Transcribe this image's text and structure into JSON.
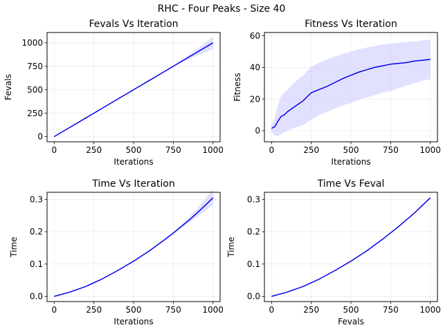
{
  "figure": {
    "title": "RHC - Four Peaks - Size 40",
    "line_color": "#0000ee",
    "band_color": "#c8c8ff",
    "grid": true
  },
  "chart_data": [
    {
      "type": "line",
      "title": "Fevals Vs Iteration",
      "xlabel": "Iterations",
      "ylabel": "Fevals",
      "xlim": [
        -45,
        1045
      ],
      "ylim": [
        -55,
        1110
      ],
      "xticks": [
        0,
        250,
        500,
        750,
        1000
      ],
      "yticks": [
        0,
        250,
        500,
        750,
        1000
      ],
      "xticklabels": [
        "0",
        "250",
        "500",
        "750",
        "1000"
      ],
      "yticklabels": [
        "0",
        "250",
        "500",
        "750",
        "1000"
      ],
      "series": [
        {
          "x": [
            0,
            100,
            200,
            300,
            400,
            500,
            600,
            700,
            750,
            800,
            850,
            900,
            950,
            1000
          ],
          "y": [
            0,
            100,
            200,
            300,
            400,
            500,
            600,
            700,
            750,
            800,
            850,
            900,
            950,
            1000
          ],
          "lower": [
            0,
            100,
            200,
            300,
            400,
            500,
            600,
            700,
            748,
            787,
            826,
            862,
            898,
            935
          ],
          "upper": [
            0,
            100,
            200,
            300,
            400,
            500,
            600,
            700,
            752,
            812,
            874,
            936,
            1000,
            1065
          ]
        }
      ]
    },
    {
      "type": "line",
      "title": "Fitness Vs Iteration",
      "xlabel": "Iterations",
      "ylabel": "Fitness",
      "xlim": [
        -45,
        1045
      ],
      "ylim": [
        -7,
        62
      ],
      "xticks": [
        0,
        250,
        500,
        750,
        1000
      ],
      "yticks": [
        0,
        20,
        40,
        60
      ],
      "xticklabels": [
        "0",
        "250",
        "500",
        "750",
        "1000"
      ],
      "yticklabels": [
        "0",
        "20",
        "40",
        "60"
      ],
      "series": [
        {
          "x": [
            0,
            20,
            40,
            60,
            80,
            100,
            150,
            200,
            250,
            300,
            350,
            400,
            450,
            500,
            550,
            600,
            650,
            700,
            750,
            800,
            850,
            900,
            950,
            1000
          ],
          "y": [
            1.5,
            2.5,
            6,
            9,
            10,
            12,
            15.5,
            19,
            24,
            26,
            28,
            30.5,
            33,
            35,
            37,
            38.5,
            40,
            41,
            42,
            42.5,
            43,
            44,
            44.5,
            45
          ],
          "lower": [
            -1,
            -3,
            -3.5,
            -2,
            -1,
            0,
            2,
            3.5,
            7,
            10,
            12,
            14,
            16,
            17.5,
            19.5,
            21,
            22.5,
            24,
            25,
            27,
            28.5,
            30,
            31.5,
            32.5
          ],
          "upper": [
            4,
            8,
            16,
            22,
            24,
            26,
            31,
            35,
            40.5,
            43,
            45,
            47,
            48.5,
            50,
            51.5,
            52.5,
            53.5,
            54.5,
            55,
            55.5,
            56,
            56.5,
            57,
            57.5
          ]
        }
      ]
    },
    {
      "type": "line",
      "title": "Time Vs Iteration",
      "xlabel": "Iterations",
      "ylabel": "Time",
      "xlim": [
        -45,
        1045
      ],
      "ylim": [
        -0.016,
        0.322
      ],
      "xticks": [
        0,
        250,
        500,
        750,
        1000
      ],
      "yticks": [
        0.0,
        0.1,
        0.2,
        0.3
      ],
      "xticklabels": [
        "0",
        "250",
        "500",
        "750",
        "1000"
      ],
      "yticklabels": [
        "0.0",
        "0.1",
        "0.2",
        "0.3"
      ],
      "series": [
        {
          "x": [
            0,
            100,
            200,
            300,
            400,
            500,
            600,
            700,
            750,
            800,
            850,
            900,
            950,
            1000
          ],
          "y": [
            0,
            0.0135,
            0.031,
            0.0535,
            0.08,
            0.109,
            0.141,
            0.177,
            0.196,
            0.216,
            0.236,
            0.258,
            0.281,
            0.305
          ],
          "lower": [
            0,
            0.0135,
            0.031,
            0.0535,
            0.08,
            0.109,
            0.141,
            0.177,
            0.194,
            0.211,
            0.228,
            0.246,
            0.264,
            0.283
          ],
          "upper": [
            0,
            0.0135,
            0.031,
            0.0535,
            0.08,
            0.109,
            0.141,
            0.177,
            0.198,
            0.221,
            0.245,
            0.272,
            0.3,
            0.334
          ]
        }
      ]
    },
    {
      "type": "line",
      "title": "Time Vs Feval",
      "xlabel": "Fevals",
      "ylabel": "Time",
      "xlim": [
        -45,
        1045
      ],
      "ylim": [
        -0.016,
        0.322
      ],
      "xticks": [
        0,
        250,
        500,
        750,
        1000
      ],
      "yticks": [
        0.0,
        0.1,
        0.2,
        0.3
      ],
      "xticklabels": [
        "0",
        "250",
        "500",
        "750",
        "1000"
      ],
      "yticklabels": [
        "0.0",
        "0.1",
        "0.2",
        "0.3"
      ],
      "series": [
        {
          "x": [
            0,
            100,
            200,
            300,
            400,
            500,
            600,
            700,
            800,
            900,
            1000
          ],
          "y": [
            0,
            0.0135,
            0.031,
            0.0535,
            0.08,
            0.109,
            0.141,
            0.177,
            0.216,
            0.258,
            0.305
          ]
        }
      ]
    }
  ]
}
